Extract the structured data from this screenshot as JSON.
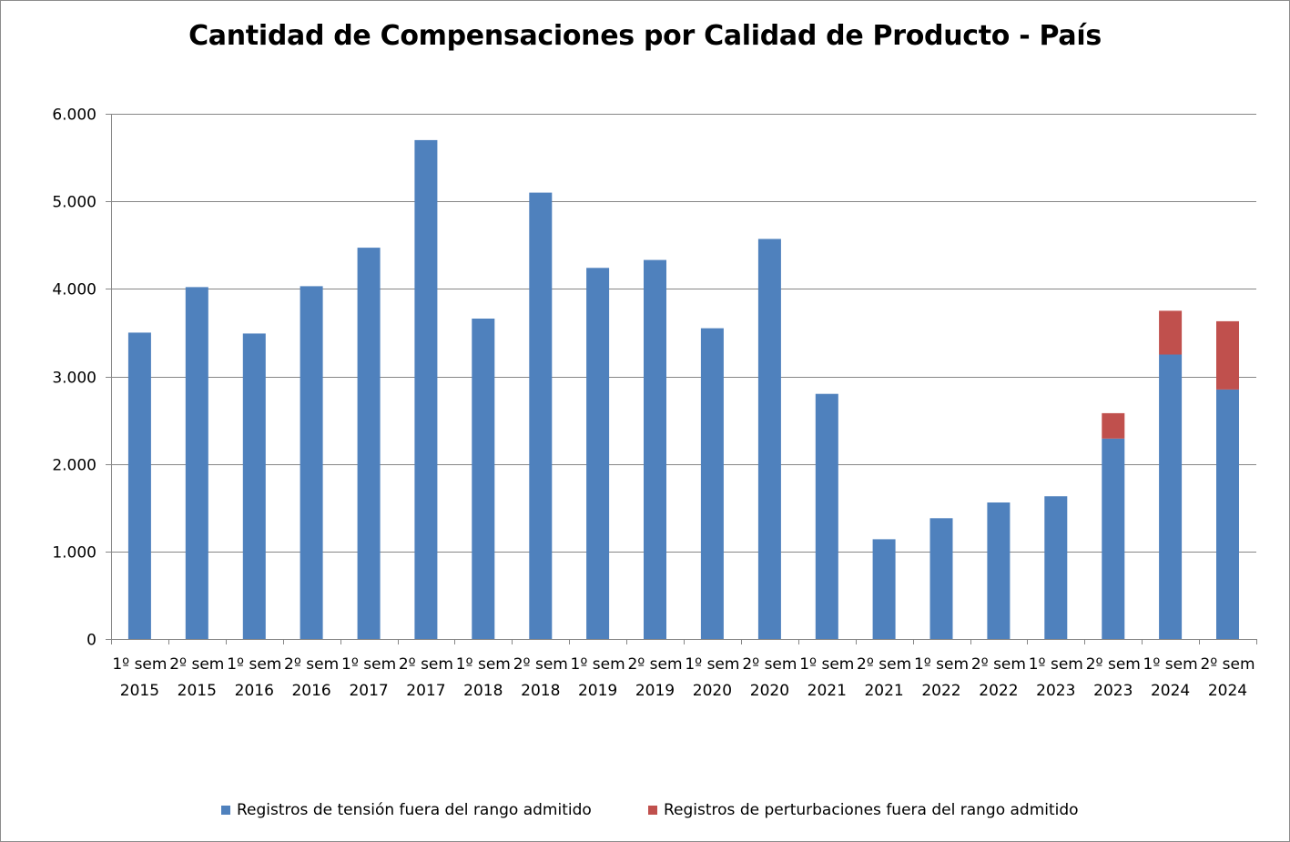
{
  "chart_data": {
    "type": "bar",
    "stacked": true,
    "title": "Cantidad de Compensaciones por Calidad de Producto - País",
    "xlabel": "",
    "ylabel": "",
    "ylim": [
      0,
      6000
    ],
    "yticks": [
      {
        "value": 0,
        "label": "0"
      },
      {
        "value": 1000,
        "label": "1.000"
      },
      {
        "value": 2000,
        "label": "2.000"
      },
      {
        "value": 3000,
        "label": "3.000"
      },
      {
        "value": 4000,
        "label": "4.000"
      },
      {
        "value": 5000,
        "label": "5.000"
      },
      {
        "value": 6000,
        "label": "6.000"
      }
    ],
    "grid": true,
    "legend_position": "bottom",
    "categories": [
      [
        "1º sem",
        "2015"
      ],
      [
        "2º sem",
        "2015"
      ],
      [
        "1º sem",
        "2016"
      ],
      [
        "2º sem",
        "2016"
      ],
      [
        "1º sem",
        "2017"
      ],
      [
        "2º sem",
        "2017"
      ],
      [
        "1º sem",
        "2018"
      ],
      [
        "2º sem",
        "2018"
      ],
      [
        "1º sem",
        "2019"
      ],
      [
        "2º sem",
        "2019"
      ],
      [
        "1º sem",
        "2020"
      ],
      [
        "2º sem",
        "2020"
      ],
      [
        "1º sem",
        "2021"
      ],
      [
        "2º sem",
        "2021"
      ],
      [
        "1º sem",
        "2022"
      ],
      [
        "2º sem",
        "2022"
      ],
      [
        "1º sem",
        "2023"
      ],
      [
        "2º sem",
        "2023"
      ],
      [
        "1º sem",
        "2024"
      ],
      [
        "2º sem",
        "2024"
      ]
    ],
    "series": [
      {
        "name": "Registros de tensión fuera del rango admitido",
        "color": "#4f81bd",
        "values": [
          3500,
          4020,
          3490,
          4030,
          4470,
          5700,
          3660,
          5100,
          4240,
          4330,
          3550,
          4570,
          2800,
          1140,
          1380,
          1560,
          1630,
          2290,
          3250,
          2850
        ]
      },
      {
        "name": "Registros de perturbaciones fuera del rango admitido",
        "color": "#c0504d",
        "values": [
          0,
          0,
          0,
          0,
          0,
          0,
          0,
          0,
          0,
          0,
          0,
          0,
          0,
          0,
          0,
          0,
          0,
          290,
          500,
          780
        ]
      }
    ]
  },
  "colors": {
    "axis": "#868686",
    "grid": "#868686"
  }
}
